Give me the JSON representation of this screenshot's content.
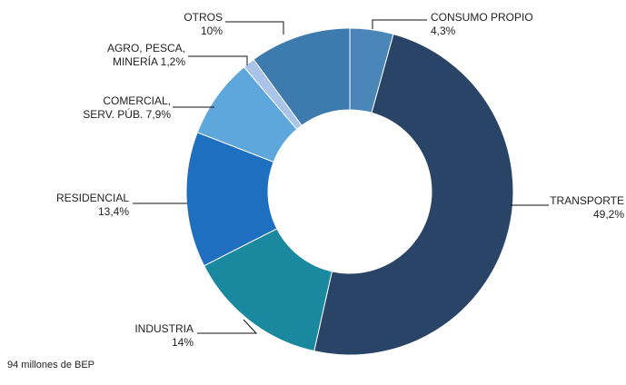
{
  "chart_data": {
    "type": "donut",
    "categories": [
      "CONSUMO PROPIO",
      "TRANSPORTE",
      "INDUSTRIA",
      "RESIDENCIAL",
      "COMERCIAL, SERV. PÚB.",
      "AGRO, PESCA, MINERÍA",
      "OTROS"
    ],
    "values": [
      4.3,
      49.2,
      14,
      13.4,
      7.9,
      1.2,
      10
    ],
    "value_labels": [
      "4,3%",
      "49,2%",
      "14%",
      "13,4%",
      "7,9%",
      "1,2%",
      "10%"
    ],
    "colors": [
      "#4a86b8",
      "#2a4468",
      "#1a889e",
      "#1e6fbf",
      "#5ea7dc",
      "#a9c4e8",
      "#3d7aae"
    ],
    "footnote": "94 millones de BEP"
  }
}
